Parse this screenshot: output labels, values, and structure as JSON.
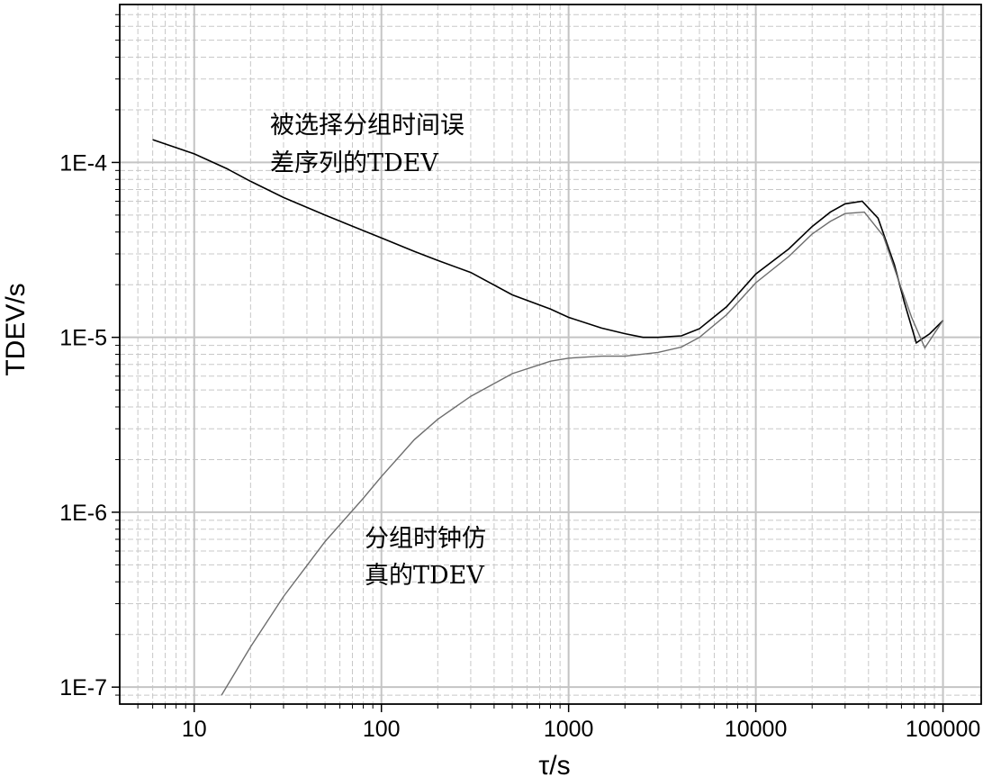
{
  "chart_data": {
    "type": "line",
    "title": "",
    "xlabel": "τ/s",
    "ylabel": "TDEV/s",
    "x_scale": "log",
    "y_scale": "log",
    "xlim": [
      4,
      160000
    ],
    "ylim": [
      8e-08,
      0.0008
    ],
    "x_ticks": [
      {
        "value": 10,
        "label": "10"
      },
      {
        "value": 100,
        "label": "100"
      },
      {
        "value": 1000,
        "label": "1000"
      },
      {
        "value": 10000,
        "label": "10000"
      },
      {
        "value": 100000,
        "label": "100000"
      }
    ],
    "y_ticks": [
      {
        "value": 1e-07,
        "label": "1E-7"
      },
      {
        "value": 1e-06,
        "label": "1E-6"
      },
      {
        "value": 1e-05,
        "label": "1E-5"
      },
      {
        "value": 0.0001,
        "label": "1E-4"
      }
    ],
    "grid": true,
    "series": [
      {
        "color": "#000000",
        "points": [
          [
            6,
            0.000135
          ],
          [
            10,
            0.000112
          ],
          [
            15,
            9.2e-05
          ],
          [
            20,
            7.8e-05
          ],
          [
            30,
            6.3e-05
          ],
          [
            50,
            5e-05
          ],
          [
            100,
            3.7e-05
          ],
          [
            150,
            3.1e-05
          ],
          [
            200,
            2.75e-05
          ],
          [
            300,
            2.35e-05
          ],
          [
            500,
            1.75e-05
          ],
          [
            800,
            1.45e-05
          ],
          [
            1000,
            1.3e-05
          ],
          [
            1500,
            1.13e-05
          ],
          [
            2000,
            1.05e-05
          ],
          [
            2500,
            1e-05
          ],
          [
            3000,
            1e-05
          ],
          [
            4000,
            1.02e-05
          ],
          [
            5000,
            1.12e-05
          ],
          [
            7000,
            1.5e-05
          ],
          [
            10000,
            2.3e-05
          ],
          [
            15000,
            3.2e-05
          ],
          [
            20000,
            4.3e-05
          ],
          [
            25000,
            5.2e-05
          ],
          [
            30000,
            5.8e-05
          ],
          [
            37000,
            6e-05
          ],
          [
            45000,
            4.8e-05
          ],
          [
            55000,
            2.6e-05
          ],
          [
            62000,
            1.6e-05
          ],
          [
            72000,
            9.3e-06
          ],
          [
            85000,
            1.05e-05
          ],
          [
            100000,
            1.25e-05
          ]
        ]
      },
      {
        "color": "#6e6e6e",
        "points": [
          [
            14,
            9e-08
          ],
          [
            20,
            1.7e-07
          ],
          [
            30,
            3.3e-07
          ],
          [
            50,
            6.8e-07
          ],
          [
            80,
            1.2e-06
          ],
          [
            100,
            1.6e-06
          ],
          [
            150,
            2.6e-06
          ],
          [
            200,
            3.4e-06
          ],
          [
            300,
            4.6e-06
          ],
          [
            500,
            6.2e-06
          ],
          [
            800,
            7.3e-06
          ],
          [
            1000,
            7.6e-06
          ],
          [
            1500,
            7.8e-06
          ],
          [
            2000,
            7.8e-06
          ],
          [
            3000,
            8.2e-06
          ],
          [
            4000,
            8.8e-06
          ],
          [
            5000,
            1e-05
          ],
          [
            7000,
            1.35e-05
          ],
          [
            10000,
            2.05e-05
          ],
          [
            15000,
            2.9e-05
          ],
          [
            20000,
            3.9e-05
          ],
          [
            25000,
            4.6e-05
          ],
          [
            30000,
            5.1e-05
          ],
          [
            38000,
            5.2e-05
          ],
          [
            48000,
            3.8e-05
          ],
          [
            58000,
            2.1e-05
          ],
          [
            68000,
            1.3e-05
          ],
          [
            80000,
            8.7e-06
          ],
          [
            100000,
            1.25e-05
          ]
        ]
      }
    ],
    "annotations": [
      {
        "lines": [
          "被选择分组时间误",
          "差序列的TDEV"
        ]
      },
      {
        "lines": [
          "分组时钟仿",
          "真的TDEV"
        ]
      }
    ]
  }
}
